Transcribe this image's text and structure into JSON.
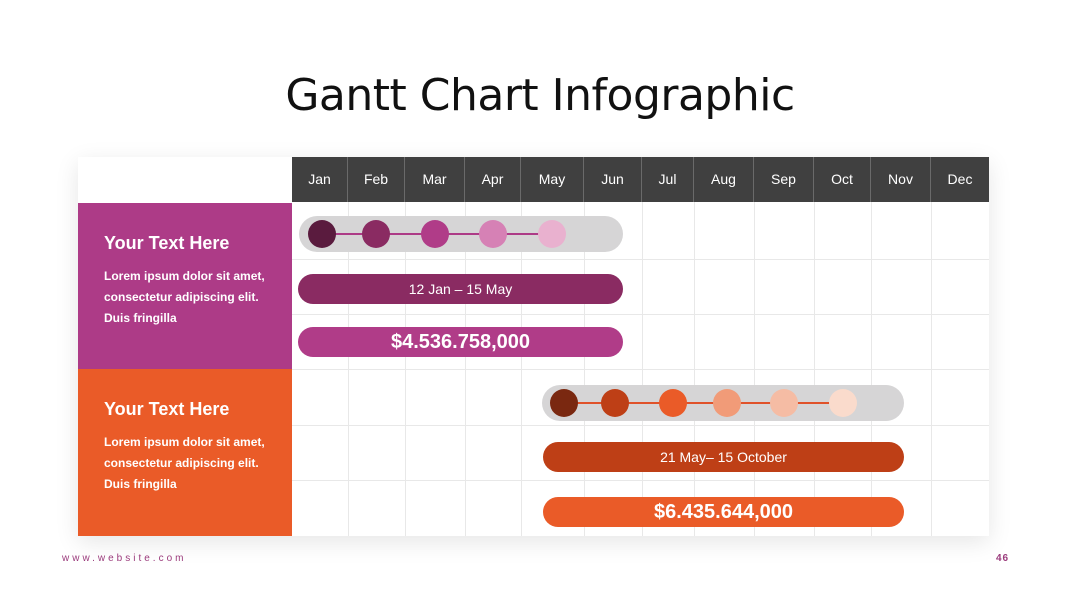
{
  "title": "Gantt Chart Infographic",
  "months": [
    "Jan",
    "Feb",
    "Mar",
    "Apr",
    "May",
    "Jun",
    "Jul",
    "Aug",
    "Sep",
    "Oct",
    "Nov",
    "Dec"
  ],
  "rows": [
    {
      "heading": "Your Text Here",
      "body": "Lorem ipsum dolor sit amet, consectetur adipiscing elit. Duis fringilla",
      "color": "#ad3b87",
      "date_label": "12 Jan – 15 May",
      "date_bar_color": "#8a2b62",
      "amount": "$4.536.758,000",
      "amount_bar_color": "#b03c88",
      "milestone_colors": [
        "#5a1b3e",
        "#8a2b62",
        "#b03c88",
        "#d681b5",
        "#e9b1cf"
      ],
      "milestone_line_color": "#ad3b87"
    },
    {
      "heading": "Your Text Here",
      "body": "Lorem ipsum dolor sit amet, consectetur adipiscing elit. Duis fringilla",
      "color": "#ea5b28",
      "date_label": "21 May– 15 October",
      "date_bar_color": "#be3f16",
      "amount": "$6.435.644,000",
      "amount_bar_color": "#ea5b28",
      "milestone_colors": [
        "#7a2810",
        "#be3f16",
        "#ea5b28",
        "#f19b78",
        "#f5bca4",
        "#fadbcc"
      ],
      "milestone_line_color": "#e0522a"
    }
  ],
  "footer": {
    "website": "www.website.com",
    "page": "46"
  }
}
